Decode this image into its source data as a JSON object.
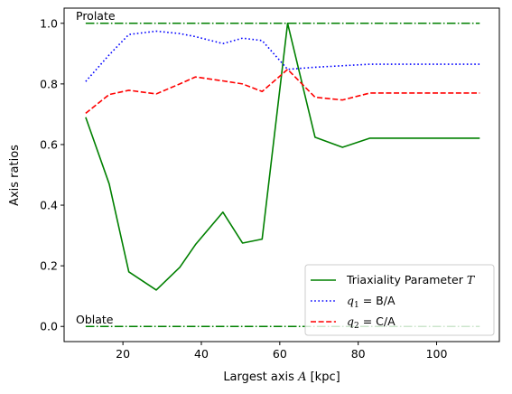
{
  "chart_data": {
    "type": "line",
    "title": "",
    "xlabel": "Largest axis A [kpc]",
    "xlabel_parts": {
      "pre": "Largest axis ",
      "var": "A",
      "post": " [kpc]"
    },
    "ylabel": "Axis ratios",
    "xlim": [
      5.0,
      116.0
    ],
    "ylim": [
      -0.05,
      1.05
    ],
    "xticks": [
      20,
      40,
      60,
      80,
      100
    ],
    "yticks": [
      0.0,
      0.2,
      0.4,
      0.6,
      0.8,
      1.0
    ],
    "grid": false,
    "legend_position": "lower-right",
    "series": [
      {
        "name": "Triaxiality Parameter T",
        "legend": {
          "text": "Triaxiality Parameter ",
          "var": "T"
        },
        "color": "#008000",
        "style": "solid",
        "x": [
          10.5,
          16.5,
          21.5,
          28.5,
          34.5,
          38.5,
          45.5,
          50.5,
          55.5,
          62.0,
          69.0,
          76.0,
          83.0,
          90.0,
          97.0,
          104.0,
          111.0
        ],
        "y": [
          0.69,
          0.47,
          0.18,
          0.12,
          0.195,
          0.27,
          0.377,
          0.275,
          0.288,
          1.0,
          0.624,
          0.591,
          0.621,
          0.621,
          0.621,
          0.621,
          0.621
        ]
      },
      {
        "name": "q1 = B/A",
        "legend": {
          "var": "q",
          "sub": "1",
          "rest": " = B/A"
        },
        "color": "#0000ff",
        "style": "dotted",
        "x": [
          10.5,
          16.5,
          21.5,
          28.5,
          34.5,
          38.5,
          45.5,
          50.5,
          55.5,
          62.0,
          69.0,
          76.0,
          83.0,
          90.0,
          97.0,
          104.0,
          111.0
        ],
        "y": [
          0.808,
          0.896,
          0.963,
          0.974,
          0.966,
          0.956,
          0.933,
          0.951,
          0.943,
          0.848,
          0.855,
          0.86,
          0.865,
          0.865,
          0.865,
          0.865,
          0.865
        ]
      },
      {
        "name": "q2 = C/A",
        "legend": {
          "var": "q",
          "sub": "2",
          "rest": " = C/A"
        },
        "color": "#ff0000",
        "style": "dashed",
        "x": [
          10.5,
          16.5,
          21.5,
          28.5,
          34.5,
          38.5,
          45.5,
          50.5,
          55.5,
          62.0,
          69.0,
          76.0,
          83.0,
          90.0,
          97.0,
          104.0,
          111.0
        ],
        "y": [
          0.703,
          0.765,
          0.779,
          0.767,
          0.8,
          0.823,
          0.81,
          0.8,
          0.775,
          0.848,
          0.756,
          0.747,
          0.77,
          0.77,
          0.77,
          0.77,
          0.77
        ]
      }
    ],
    "reference_lines": [
      {
        "y": 1.0,
        "x": [
          10.5,
          111.0
        ],
        "color": "#008000",
        "style": "dashdot",
        "label": "Prolate"
      },
      {
        "y": 0.0,
        "x": [
          10.5,
          111.0
        ],
        "color": "#008000",
        "style": "dashdot",
        "label": "Oblate"
      }
    ]
  }
}
